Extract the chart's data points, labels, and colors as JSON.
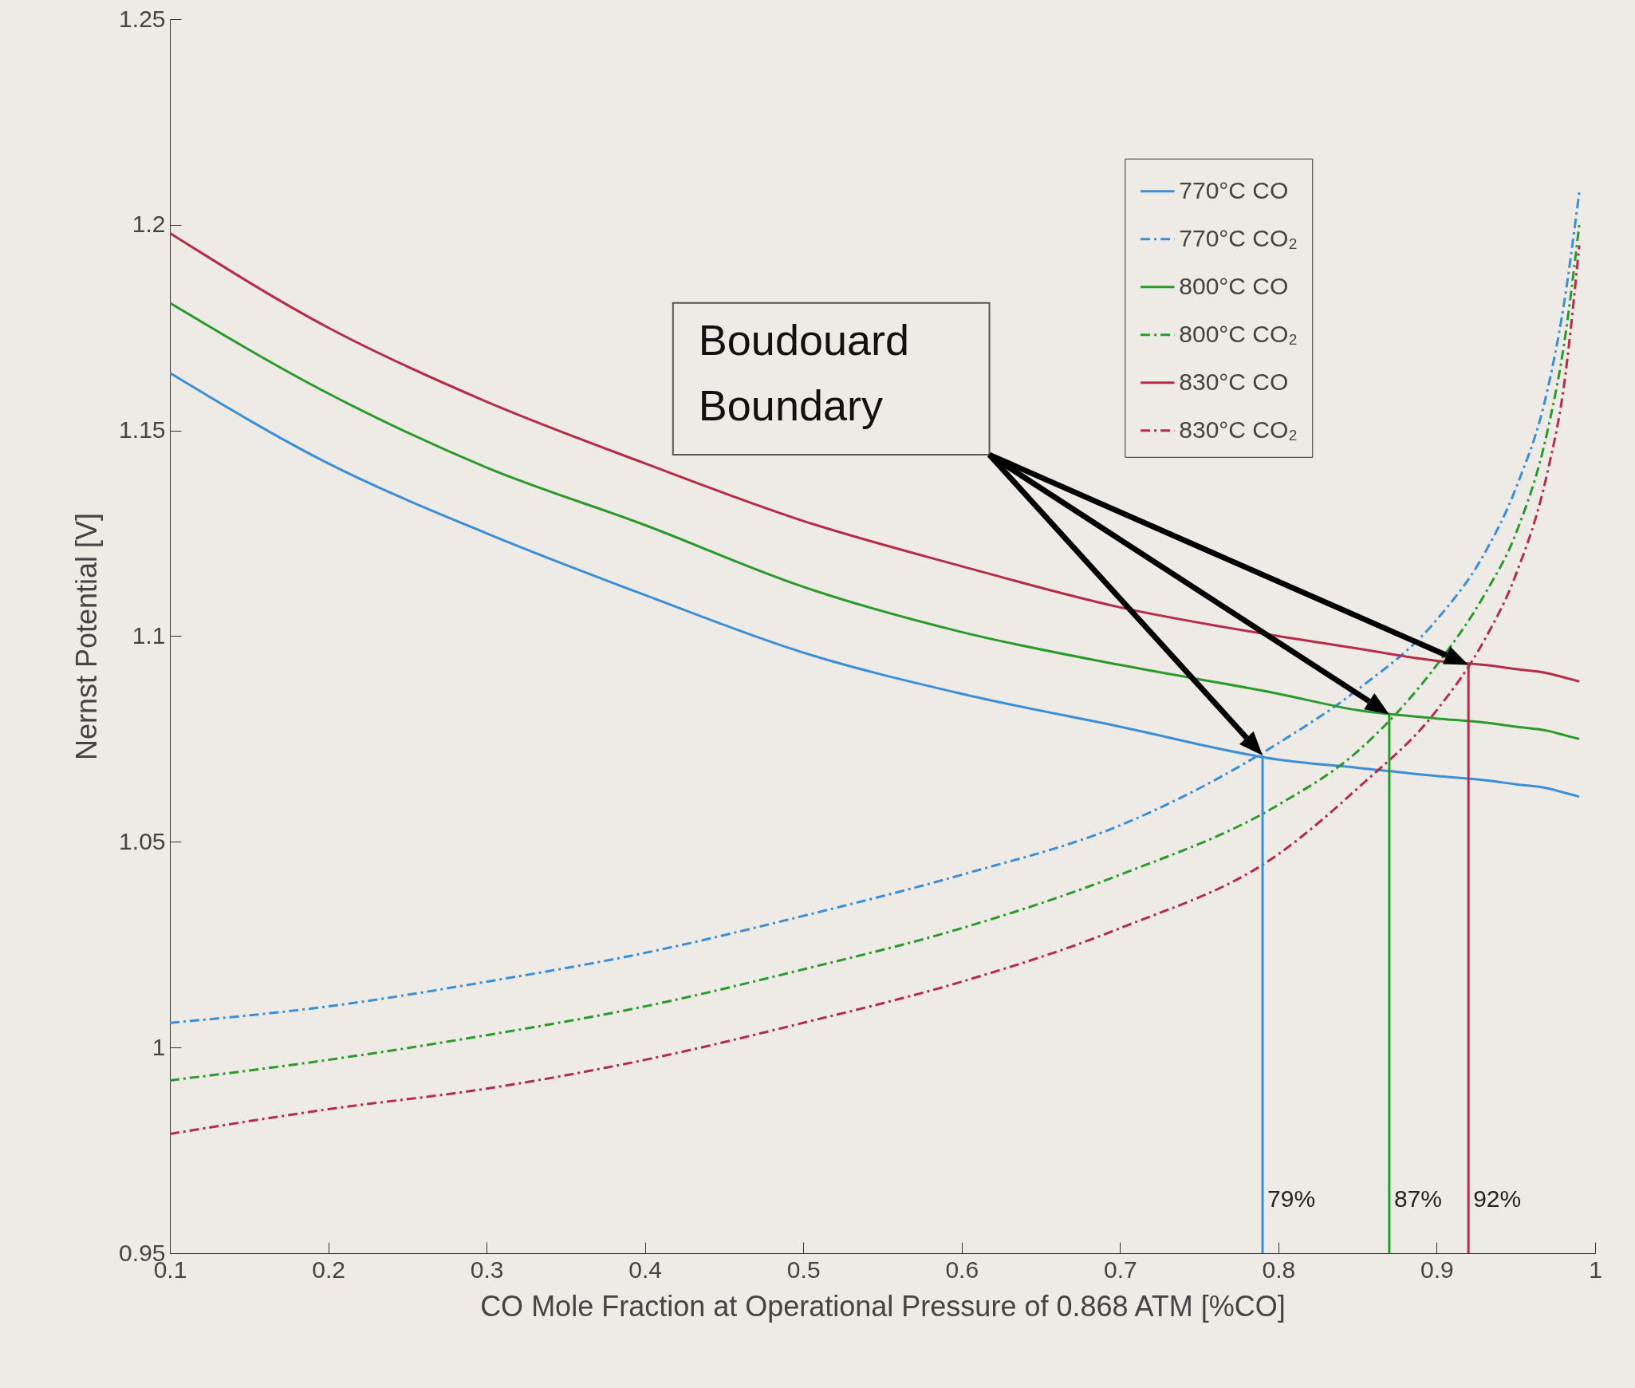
{
  "chart_data": {
    "type": "line",
    "xlabel": "CO Mole Fraction at Operational Pressure of 0.868 ATM [%CO]",
    "ylabel": "Nernst Potential [V]",
    "x": [
      0.1,
      0.2,
      0.3,
      0.4,
      0.5,
      0.6,
      0.7,
      0.8,
      0.85,
      0.9,
      0.93,
      0.95,
      0.97,
      0.98,
      0.99
    ],
    "xlim": [
      0.1,
      1
    ],
    "xticks": [
      0.1,
      0.2,
      0.3,
      0.4,
      0.5,
      0.6,
      0.7,
      0.8,
      0.9,
      1
    ],
    "ylim": [
      0.95,
      1.25
    ],
    "yticks": [
      0.95,
      1,
      1.05,
      1.1,
      1.15,
      1.2,
      1.25
    ],
    "legend": "top right",
    "marker": "none",
    "grid": false,
    "series": [
      {
        "name": "770°C CO",
        "color": "#3a8fd6",
        "line_style": "solid",
        "values": [
          1.164,
          1.142,
          1.125,
          1.11,
          1.096,
          1.086,
          1.078,
          1.07,
          1.068,
          1.066,
          1.065,
          1.064,
          1.063,
          1.062,
          1.061
        ]
      },
      {
        "name": "770°C CO₂",
        "color": "#3a8fd6",
        "line_style": "dashed",
        "values": [
          1.006,
          1.01,
          1.016,
          1.023,
          1.032,
          1.042,
          1.054,
          1.074,
          1.087,
          1.104,
          1.12,
          1.136,
          1.16,
          1.18,
          1.208
        ]
      },
      {
        "name": "800°C CO",
        "color": "#2a9a2a",
        "line_style": "solid",
        "values": [
          1.181,
          1.159,
          1.141,
          1.127,
          1.112,
          1.101,
          1.093,
          1.086,
          1.082,
          1.08,
          1.079,
          1.078,
          1.077,
          1.076,
          1.075
        ]
      },
      {
        "name": "800°C CO₂",
        "color": "#2a9a2a",
        "line_style": "dashed",
        "values": [
          0.992,
          0.997,
          1.003,
          1.01,
          1.019,
          1.029,
          1.042,
          1.059,
          1.072,
          1.093,
          1.11,
          1.125,
          1.15,
          1.17,
          1.2
        ]
      },
      {
        "name": "830°C CO",
        "color": "#b52b4a",
        "line_style": "solid",
        "values": [
          1.198,
          1.175,
          1.157,
          1.142,
          1.128,
          1.117,
          1.107,
          1.1,
          1.097,
          1.094,
          1.093,
          1.092,
          1.091,
          1.09,
          1.089
        ]
      },
      {
        "name": "830°C CO₂",
        "color": "#b52b4a",
        "line_style": "dashed",
        "values": [
          0.979,
          0.985,
          0.99,
          0.997,
          1.006,
          1.016,
          1.029,
          1.047,
          1.063,
          1.082,
          1.099,
          1.115,
          1.14,
          1.16,
          1.195
        ]
      },
      {
        "color": "#3a8fd6",
        "line_style": "solid",
        "x": [
          0.79,
          0.79
        ],
        "values": [
          0.95,
          1.071
        ]
      },
      {
        "color": "#2a9a2a",
        "line_style": "solid",
        "x": [
          0.87,
          0.87
        ],
        "values": [
          0.95,
          1.081
        ]
      },
      {
        "color": "#b52b4a",
        "line_style": "solid",
        "x": [
          0.92,
          0.92
        ],
        "values": [
          0.95,
          1.093
        ]
      }
    ],
    "annotations": [
      {
        "text": "79%",
        "x": 0.79,
        "y": 0.96
      },
      {
        "text": "87%",
        "x": 0.87,
        "y": 0.96
      },
      {
        "text": "92%",
        "x": 0.92,
        "y": 0.96
      },
      "Boudouard Boundary"
    ]
  }
}
